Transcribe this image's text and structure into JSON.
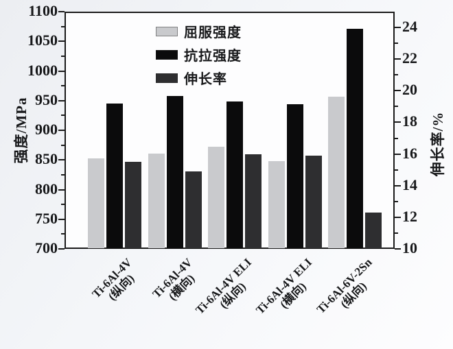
{
  "chart_data": {
    "type": "bar",
    "title": "",
    "categories": [
      {
        "name": "Ti-6Al-4V",
        "orientation": "(纵向)"
      },
      {
        "name": "Ti-6Al-4V",
        "orientation": "(横向)"
      },
      {
        "name": "Ti-6Al-4V ELI",
        "orientation": "(纵向)"
      },
      {
        "name": "Ti-6Al-4V ELI",
        "orientation": "(横向)"
      },
      {
        "name": "Ti-6Al-6V-2Sn",
        "orientation": "(纵向)"
      }
    ],
    "series": [
      {
        "id": "yield-strength",
        "name": "屈服强度",
        "axis": "left",
        "color": "#c9cacd",
        "values": [
          853,
          861,
          872,
          848,
          957
        ]
      },
      {
        "id": "tensile-strength",
        "name": "抗拉强度",
        "axis": "left",
        "color": "#0b0b0c",
        "values": [
          945,
          958,
          949,
          944,
          1071
        ]
      },
      {
        "id": "elongation",
        "name": "伸长率",
        "axis": "right",
        "color": "#2e2e30",
        "values": [
          15.5,
          14.9,
          16.0,
          15.9,
          12.3
        ]
      }
    ],
    "left_axis": {
      "label": "强度/MPa",
      "min": 700,
      "max": 1100,
      "major_ticks": [
        700,
        750,
        800,
        850,
        900,
        950,
        1000,
        1050,
        1100
      ],
      "minor_step": 25
    },
    "right_axis": {
      "label": "伸长率/%",
      "min": 10,
      "max": 25,
      "major_ticks": [
        10,
        12,
        14,
        16,
        18,
        20,
        22,
        24
      ],
      "minor_step": 1
    },
    "legend_position": "top-inside",
    "grid": false
  },
  "style": {
    "axis_color": "#1a1a1a",
    "text_color": "#17181a",
    "background": "#f2f4f7",
    "plot_background": "#fdfdfe"
  }
}
